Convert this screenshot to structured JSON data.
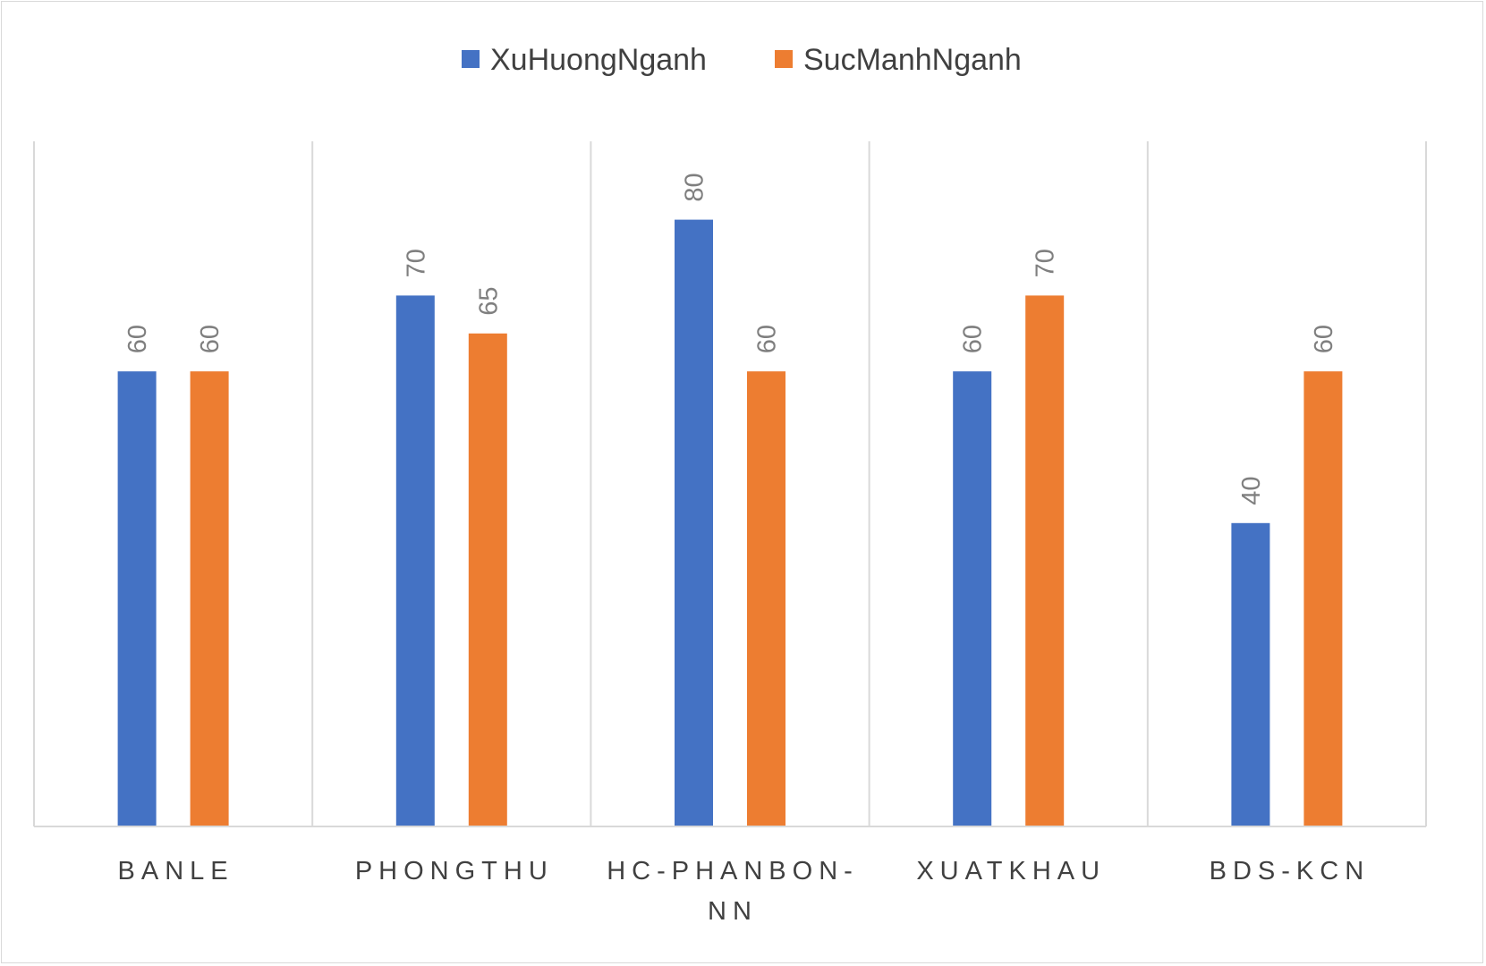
{
  "chart_data": {
    "type": "bar",
    "categories": [
      [
        "BANLE"
      ],
      [
        "PHONGTHU"
      ],
      [
        "HC-PHANBON-",
        "NN"
      ],
      [
        "XUATKHAU"
      ],
      [
        "BDS-KCN"
      ]
    ],
    "series": [
      {
        "name": "XuHuongNganh",
        "color": "#4472C4",
        "values": [
          60,
          70,
          80,
          60,
          40
        ]
      },
      {
        "name": "SucManhNganh",
        "color": "#ED7D31",
        "values": [
          60,
          65,
          60,
          70,
          60
        ]
      }
    ],
    "ylim": [
      0,
      90
    ],
    "legend_position": "top-center",
    "grid": "vertical category separators",
    "data_labels": "vertical above bars"
  }
}
